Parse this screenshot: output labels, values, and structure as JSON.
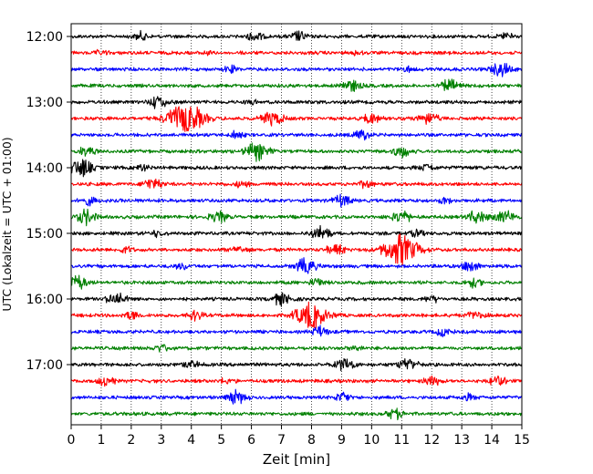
{
  "chart_data": {
    "type": "line",
    "title": "",
    "xlabel": "Zeit  [min]",
    "ylabel": "UTC (Lokalzeit = UTC + 01:00)",
    "xlim": [
      0,
      15
    ],
    "x_ticks": [
      "0",
      "1",
      "2",
      "3",
      "4",
      "5",
      "6",
      "7",
      "8",
      "9",
      "10",
      "11",
      "12",
      "13",
      "14",
      "15"
    ],
    "y_tick_labels": [
      "12:00",
      "13:00",
      "14:00",
      "15:00",
      "16:00",
      "17:00"
    ],
    "y_tick_rows": [
      0,
      4,
      8,
      12,
      16,
      20
    ],
    "grid": "vertical dotted at each minute",
    "row_interval_minutes": 15,
    "start_time": "12:00",
    "trace_colors": [
      "#000000",
      "#ff0000",
      "#0000ff",
      "#008000"
    ],
    "rows": [
      {
        "label": "12:00",
        "color": "#000000",
        "events": [
          [
            2.3,
            0.25
          ],
          [
            6.1,
            0.3
          ],
          [
            7.6,
            0.3
          ],
          [
            14.5,
            0.25
          ]
        ]
      },
      {
        "label": "12:15",
        "color": "#ff0000",
        "events": [
          [
            1.0,
            0.15
          ],
          [
            4.5,
            0.15
          ],
          [
            9.5,
            0.15
          ]
        ]
      },
      {
        "label": "12:30",
        "color": "#0000ff",
        "events": [
          [
            5.3,
            0.2
          ],
          [
            11.2,
            0.15
          ],
          [
            14.3,
            0.4
          ]
        ]
      },
      {
        "label": "12:45",
        "color": "#008000",
        "events": [
          [
            9.3,
            0.35
          ],
          [
            12.6,
            0.35
          ]
        ]
      },
      {
        "label": "13:00",
        "color": "#000000",
        "events": [
          [
            2.9,
            0.4
          ],
          [
            6.0,
            0.15
          ]
        ]
      },
      {
        "label": "13:15",
        "color": "#ff0000",
        "events": [
          [
            3.8,
            1.0
          ],
          [
            6.7,
            0.45
          ],
          [
            10.0,
            0.3
          ],
          [
            11.9,
            0.35
          ]
        ]
      },
      {
        "label": "13:30",
        "color": "#0000ff",
        "events": [
          [
            5.5,
            0.2
          ],
          [
            9.7,
            0.3
          ]
        ]
      },
      {
        "label": "13:45",
        "color": "#008000",
        "events": [
          [
            0.5,
            0.3
          ],
          [
            6.2,
            0.55
          ],
          [
            11.0,
            0.35
          ]
        ]
      },
      {
        "label": "14:00",
        "color": "#000000",
        "events": [
          [
            0.3,
            0.55
          ],
          [
            2.4,
            0.2
          ],
          [
            11.8,
            0.25
          ]
        ]
      },
      {
        "label": "14:15",
        "color": "#ff0000",
        "events": [
          [
            2.7,
            0.35
          ],
          [
            5.7,
            0.2
          ],
          [
            9.8,
            0.2
          ]
        ]
      },
      {
        "label": "14:30",
        "color": "#0000ff",
        "events": [
          [
            0.6,
            0.25
          ],
          [
            9.0,
            0.35
          ],
          [
            12.4,
            0.2
          ]
        ]
      },
      {
        "label": "14:45",
        "color": "#008000",
        "events": [
          [
            0.5,
            0.45
          ],
          [
            4.9,
            0.35
          ],
          [
            11.0,
            0.4
          ],
          [
            13.5,
            0.4
          ],
          [
            14.4,
            0.4
          ]
        ]
      },
      {
        "label": "15:00",
        "color": "#000000",
        "events": [
          [
            2.9,
            0.2
          ],
          [
            8.3,
            0.4
          ],
          [
            11.5,
            0.2
          ]
        ]
      },
      {
        "label": "15:15",
        "color": "#ff0000",
        "events": [
          [
            1.8,
            0.2
          ],
          [
            5.6,
            0.25
          ],
          [
            8.8,
            0.35
          ],
          [
            11.0,
            0.95
          ]
        ]
      },
      {
        "label": "15:30",
        "color": "#0000ff",
        "events": [
          [
            3.7,
            0.2
          ],
          [
            7.8,
            0.45
          ],
          [
            13.3,
            0.3
          ]
        ]
      },
      {
        "label": "15:45",
        "color": "#008000",
        "events": [
          [
            0.2,
            0.4
          ],
          [
            8.2,
            0.25
          ],
          [
            13.4,
            0.25
          ]
        ]
      },
      {
        "label": "16:00",
        "color": "#000000",
        "events": [
          [
            1.5,
            0.4
          ],
          [
            7.0,
            0.4
          ],
          [
            12.0,
            0.2
          ]
        ]
      },
      {
        "label": "16:15",
        "color": "#ff0000",
        "events": [
          [
            2.0,
            0.25
          ],
          [
            4.1,
            0.3
          ],
          [
            8.0,
            0.85
          ],
          [
            13.5,
            0.3
          ]
        ]
      },
      {
        "label": "16:30",
        "color": "#0000ff",
        "events": [
          [
            8.3,
            0.3
          ],
          [
            12.4,
            0.25
          ]
        ]
      },
      {
        "label": "16:45",
        "color": "#008000",
        "events": [
          [
            3.0,
            0.25
          ],
          [
            9.5,
            0.15
          ]
        ]
      },
      {
        "label": "17:00",
        "color": "#000000",
        "events": [
          [
            4.0,
            0.25
          ],
          [
            9.1,
            0.4
          ],
          [
            11.2,
            0.4
          ]
        ]
      },
      {
        "label": "17:15",
        "color": "#ff0000",
        "events": [
          [
            1.2,
            0.3
          ],
          [
            5.2,
            0.2
          ],
          [
            12.0,
            0.3
          ],
          [
            14.2,
            0.3
          ]
        ]
      },
      {
        "label": "17:30",
        "color": "#0000ff",
        "events": [
          [
            5.5,
            0.4
          ],
          [
            9.0,
            0.3
          ],
          [
            13.2,
            0.2
          ]
        ]
      },
      {
        "label": "17:45",
        "color": "#008000",
        "events": [
          [
            10.8,
            0.3
          ]
        ]
      }
    ]
  }
}
